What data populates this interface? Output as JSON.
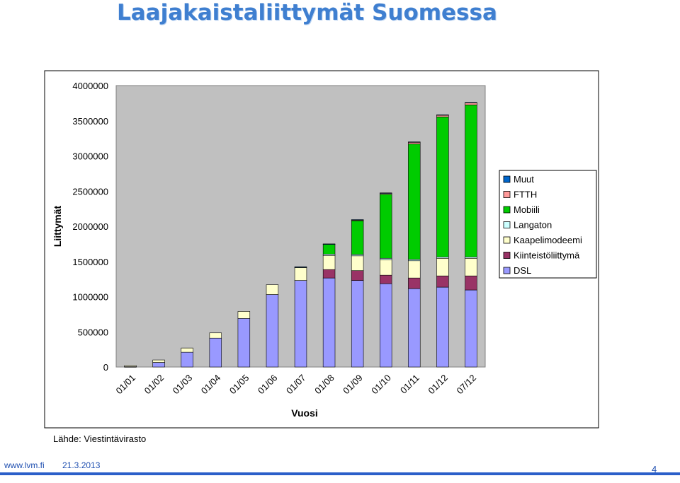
{
  "slide": {
    "title": "Laajakaistaliittymät Suomessa",
    "source": "Lähde: Viestintävirasto",
    "footer_url": "www.lvm.fi",
    "footer_date": "21.3.2013",
    "page_number": "4"
  },
  "chart_data": {
    "type": "bar",
    "stacked": true,
    "title": "",
    "xlabel": "Vuosi",
    "ylabel": "Liittymät",
    "ylim": [
      0,
      4000000
    ],
    "yticks": [
      "0",
      "500000",
      "1000000",
      "1500000",
      "2000000",
      "2500000",
      "3000000",
      "3500000",
      "4000000"
    ],
    "grid": false,
    "legend_position": "right",
    "categories": [
      "01/01",
      "01/02",
      "01/03",
      "01/04",
      "01/05",
      "01/06",
      "01/07",
      "01/08",
      "01/09",
      "01/10",
      "01/11",
      "01/12",
      "07/12"
    ],
    "series": [
      {
        "name": "DSL",
        "color": "#9999ff",
        "values": [
          5000,
          65000,
          210000,
          410000,
          690000,
          1030000,
          1230000,
          1265000,
          1230000,
          1185000,
          1115000,
          1135000,
          1095000
        ]
      },
      {
        "name": "Kiinteistöliittymä",
        "color": "#993366",
        "values": [
          0,
          0,
          0,
          0,
          0,
          0,
          0,
          120000,
          140000,
          120000,
          150000,
          160000,
          200000
        ]
      },
      {
        "name": "Kaapelimodeemi",
        "color": "#ffffcc",
        "values": [
          15000,
          35000,
          60000,
          75000,
          100000,
          140000,
          180000,
          200000,
          210000,
          220000,
          245000,
          250000,
          250000
        ]
      },
      {
        "name": "Langaton",
        "color": "#ccffff",
        "values": [
          0,
          0,
          0,
          0,
          0,
          0,
          10000,
          20000,
          20000,
          20000,
          20000,
          20000,
          20000
        ]
      },
      {
        "name": "Mobiili",
        "color": "#00cc00",
        "values": [
          0,
          0,
          0,
          0,
          0,
          0,
          0,
          140000,
          480000,
          910000,
          1640000,
          1990000,
          2160000
        ]
      },
      {
        "name": "FTTH",
        "color": "#ff9999",
        "values": [
          0,
          0,
          0,
          0,
          0,
          0,
          0,
          0,
          10000,
          15000,
          25000,
          25000,
          30000
        ]
      },
      {
        "name": "Muut",
        "color": "#0066cc",
        "values": [
          0,
          0,
          0,
          0,
          0,
          0,
          5000,
          5000,
          5000,
          5000,
          5000,
          5000,
          5000
        ]
      }
    ]
  }
}
